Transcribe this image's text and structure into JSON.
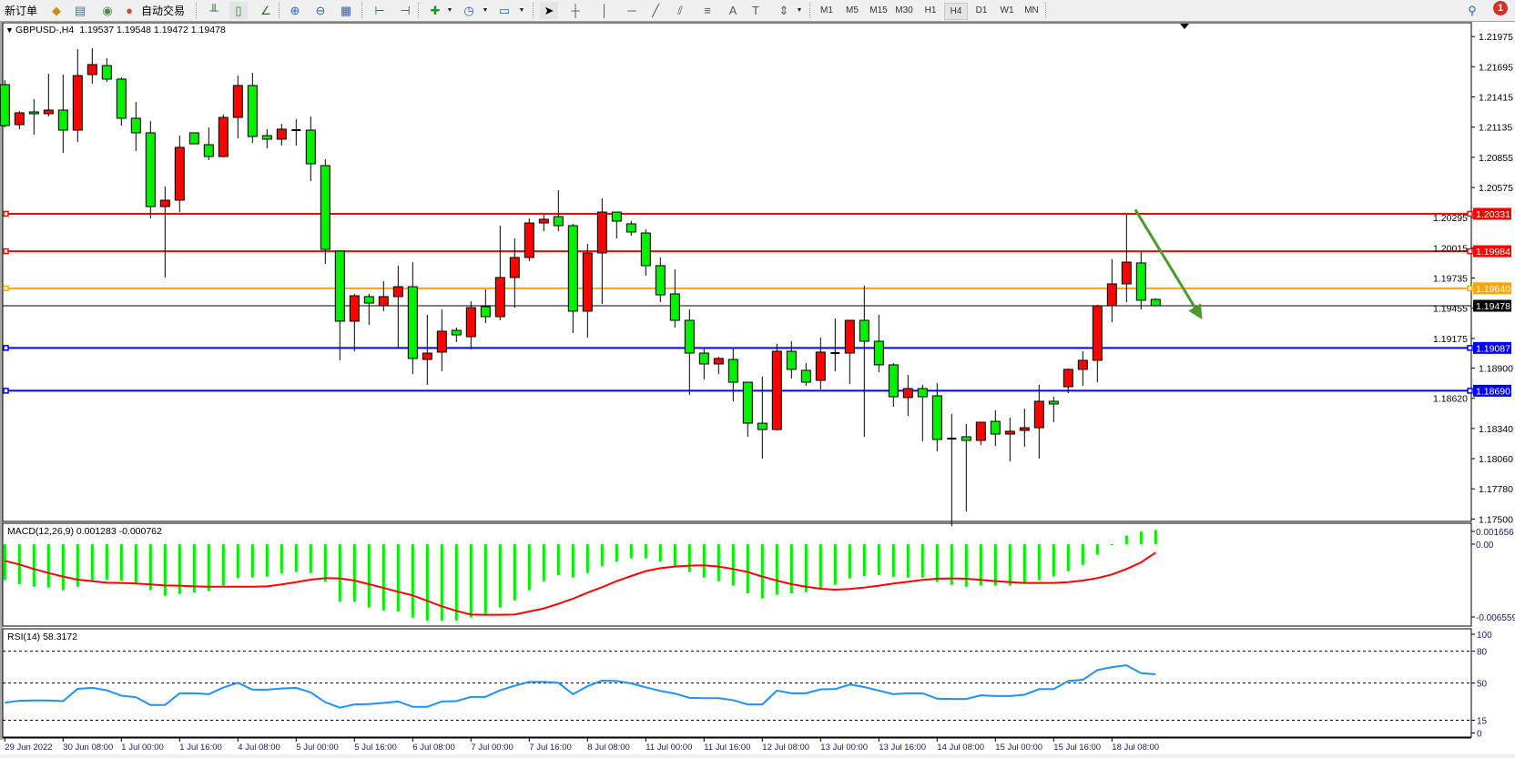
{
  "toolbar": {
    "new_order": "新订单",
    "auto_trading": "自动交易",
    "timeframes": [
      "M1",
      "M5",
      "M15",
      "M30",
      "H1",
      "H4",
      "D1",
      "W1",
      "MN"
    ],
    "active_timeframe": "H4",
    "notification_count": "1",
    "icons": [
      "orders-icon",
      "market-watch-icon",
      "signals-icon",
      "auto-trading-icon",
      "bar-chart-icon",
      "candlestick-icon",
      "line-chart-icon",
      "zoom-in-icon",
      "zoom-out-icon",
      "tile-windows-icon",
      "chart-shift-icon",
      "autoscroll-icon",
      "new-chart-icon",
      "periods-icon",
      "templates-icon",
      "cursor-icon",
      "crosshair-icon",
      "vertical-line-icon",
      "horizontal-line-icon",
      "trendline-icon",
      "equidistant-channel-icon",
      "fibonacci-icon",
      "text-icon",
      "text-label-icon",
      "arrows-icon",
      "search-icon",
      "notification-icon"
    ]
  },
  "colors": {
    "bull_candle": "#ff0000",
    "bear_candle": "#00ee00",
    "macd_histogram": "#00ee00",
    "macd_signal": "#ff0000",
    "rsi_line": "#1e90ff",
    "arrow": "#4c9a2a",
    "resistance": "#ff0000",
    "pivot": "#ffa500",
    "support": "#0000ff",
    "current_price": "#000000"
  },
  "chart_data": [
    {
      "type": "candlestick",
      "title": "GBPUSD-,H4",
      "header_values": "1.19537 1.19548 1.19472 1.19478",
      "ohlc_order": [
        "open",
        "high",
        "low",
        "close"
      ],
      "candles": [
        [
          1.21529,
          1.21571,
          1.21132,
          1.21149
        ],
        [
          1.21158,
          1.21284,
          1.21116,
          1.21268
        ],
        [
          1.21276,
          1.21394,
          1.21065,
          1.21259
        ],
        [
          1.21259,
          1.2163,
          1.21234,
          1.21293
        ],
        [
          1.21293,
          1.21622,
          1.20896,
          1.21107
        ],
        [
          1.21107,
          1.21858,
          1.20997,
          1.21613
        ],
        [
          1.21622,
          1.21867,
          1.21538,
          1.21715
        ],
        [
          1.21706,
          1.21774,
          1.21554,
          1.2158
        ],
        [
          1.2158,
          1.21597,
          1.21149,
          1.21217
        ],
        [
          1.21217,
          1.21369,
          1.20913,
          1.21082
        ],
        [
          1.21082,
          1.21191,
          1.20288,
          1.20398
        ],
        [
          1.20398,
          1.20584,
          1.1974,
          1.20457
        ],
        [
          1.20457,
          1.21056,
          1.20347,
          1.20947
        ],
        [
          1.21082,
          1.21082,
          1.2098,
          1.2098
        ],
        [
          1.20972,
          1.21132,
          1.20829,
          1.20862
        ],
        [
          1.20862,
          1.21251,
          1.20854,
          1.21225
        ],
        [
          1.21225,
          1.21613,
          1.21031,
          1.21521
        ],
        [
          1.21521,
          1.21639,
          1.20989,
          1.21048
        ],
        [
          1.21056,
          1.21116,
          1.20938,
          1.21023
        ],
        [
          1.21023,
          1.21166,
          1.20964,
          1.21116
        ],
        [
          1.21107,
          1.21208,
          1.20964,
          1.21107
        ],
        [
          1.21107,
          1.21234,
          1.20634,
          1.20795
        ],
        [
          1.20778,
          1.20837,
          1.19866,
          1.20001
        ],
        [
          1.19985,
          1.19985,
          1.18972,
          1.19335
        ],
        [
          1.19335,
          1.19588,
          1.19056,
          1.19571
        ],
        [
          1.19563,
          1.19588,
          1.19301,
          1.19503
        ],
        [
          1.19478,
          1.19706,
          1.19428,
          1.19563
        ],
        [
          1.19563,
          1.1985,
          1.1909,
          1.19655
        ],
        [
          1.19655,
          1.19883,
          1.18845,
          1.18989
        ],
        [
          1.1898,
          1.19394,
          1.18744,
          1.19039
        ],
        [
          1.19048,
          1.19444,
          1.18871,
          1.19242
        ],
        [
          1.1925,
          1.19276,
          1.19141,
          1.19208
        ],
        [
          1.19191,
          1.1952,
          1.19073,
          1.19461
        ],
        [
          1.1947,
          1.1963,
          1.19318,
          1.19377
        ],
        [
          1.19377,
          1.20221,
          1.19343,
          1.1974
        ],
        [
          1.1974,
          1.20103,
          1.19461,
          1.19926
        ],
        [
          1.19926,
          1.20288,
          1.19892,
          1.20246
        ],
        [
          1.20246,
          1.20322,
          1.2017,
          1.2028
        ],
        [
          1.20305,
          1.2055,
          1.2017,
          1.20221
        ],
        [
          1.20221,
          1.20238,
          1.19225,
          1.19428
        ],
        [
          1.19428,
          1.20052,
          1.19183,
          1.19968
        ],
        [
          1.19968,
          1.20474,
          1.19495,
          1.20347
        ],
        [
          1.20347,
          1.20347,
          1.20103,
          1.20263
        ],
        [
          1.20238,
          1.20263,
          1.20128,
          1.20162
        ],
        [
          1.20153,
          1.20187,
          1.19757,
          1.1985
        ],
        [
          1.1985,
          1.19926,
          1.19512,
          1.19579
        ],
        [
          1.19588,
          1.19816,
          1.19276,
          1.19343
        ],
        [
          1.19343,
          1.19444,
          1.18651,
          1.19039
        ],
        [
          1.19039,
          1.19082,
          1.18795,
          1.18938
        ],
        [
          1.18938,
          1.19006,
          1.18845,
          1.18989
        ],
        [
          1.1898,
          1.1909,
          1.18592,
          1.18769
        ],
        [
          1.18769,
          1.18769,
          1.18263,
          1.18389
        ],
        [
          1.18389,
          1.1882,
          1.1806,
          1.1833
        ],
        [
          1.1833,
          1.19124,
          1.18322,
          1.19056
        ],
        [
          1.19056,
          1.19149,
          1.18803,
          1.18888
        ],
        [
          1.18879,
          1.18946,
          1.18736,
          1.18769
        ],
        [
          1.18786,
          1.19183,
          1.18702,
          1.19048
        ],
        [
          1.19039,
          1.1936,
          1.18871,
          1.19039
        ],
        [
          1.19039,
          1.19343,
          1.18753,
          1.19343
        ],
        [
          1.19343,
          1.19664,
          1.18263,
          1.19149
        ],
        [
          1.19149,
          1.19394,
          1.18862,
          1.1893
        ],
        [
          1.1893,
          1.18946,
          1.18541,
          1.18634
        ],
        [
          1.18626,
          1.18837,
          1.18457,
          1.1871
        ],
        [
          1.1871,
          1.18744,
          1.18221,
          1.18634
        ],
        [
          1.18643,
          1.18761,
          1.18128,
          1.18238
        ],
        [
          1.18246,
          1.18474,
          1.17434,
          1.18246
        ],
        [
          1.18263,
          1.18381,
          1.17569,
          1.18229
        ],
        [
          1.18229,
          1.18398,
          1.18187,
          1.18398
        ],
        [
          1.18406,
          1.18508,
          1.18178,
          1.18288
        ],
        [
          1.18288,
          1.1844,
          1.18035,
          1.18314
        ],
        [
          1.18322,
          1.18524,
          1.1817,
          1.18347
        ],
        [
          1.18347,
          1.18744,
          1.1806,
          1.18592
        ],
        [
          1.18592,
          1.18634,
          1.18398,
          1.18567
        ],
        [
          1.18727,
          1.18896,
          1.18668,
          1.18888
        ],
        [
          1.18888,
          1.19056,
          1.18736,
          1.18972
        ],
        [
          1.18972,
          1.19487,
          1.18769,
          1.19478
        ],
        [
          1.19478,
          1.19909,
          1.19326,
          1.19681
        ],
        [
          1.19681,
          1.20322,
          1.19512,
          1.19883
        ],
        [
          1.19875,
          1.19976,
          1.19444,
          1.19529
        ],
        [
          1.19537,
          1.19548,
          1.19472,
          1.19478
        ]
      ],
      "price_ticks": [
        "1.21975",
        "1.21695",
        "1.21415",
        "1.21135",
        "1.20855",
        "1.20575",
        "1.20295",
        "1.20015",
        "1.19735",
        "1.19455",
        "1.19175",
        "1.18900",
        "1.18620",
        "1.18340",
        "1.18060",
        "1.17780",
        "1.17500"
      ],
      "horizontal_lines": [
        {
          "price": 1.20331,
          "label": "1.20331",
          "color": "#ff0000"
        },
        {
          "price": 1.19984,
          "label": "1.19984",
          "color": "#ff0000"
        },
        {
          "price": 1.1964,
          "label": "1.19640",
          "color": "#ffa500"
        },
        {
          "price": 1.19087,
          "label": "1.19087",
          "color": "#0000ff"
        },
        {
          "price": 1.1869,
          "label": "1.18690",
          "color": "#0000ff"
        }
      ],
      "current_price": {
        "price": 1.19478,
        "label": "1.19478"
      },
      "arrow": {
        "from_bar": 77.6,
        "from_price": 1.2037,
        "to_bar": 82.2,
        "to_price": 1.1935
      },
      "x_ticks": [
        {
          "bar": 0,
          "label": "29 Jun 2022"
        },
        {
          "bar": 4,
          "label": "30 Jun 08:00"
        },
        {
          "bar": 8,
          "label": "1 Jul 00:00"
        },
        {
          "bar": 12,
          "label": "1 Jul 16:00"
        },
        {
          "bar": 16,
          "label": "4 Jul 08:00"
        },
        {
          "bar": 20,
          "label": "5 Jul 00:00"
        },
        {
          "bar": 24,
          "label": "5 Jul 16:00"
        },
        {
          "bar": 28,
          "label": "6 Jul 08:00"
        },
        {
          "bar": 32,
          "label": "7 Jul 00:00"
        },
        {
          "bar": 36,
          "label": "7 Jul 16:00"
        },
        {
          "bar": 40,
          "label": "8 Jul 08:00"
        },
        {
          "bar": 44,
          "label": "11 Jul 00:00"
        },
        {
          "bar": 48,
          "label": "11 Jul 16:00"
        },
        {
          "bar": 52,
          "label": "12 Jul 08:00"
        },
        {
          "bar": 56,
          "label": "13 Jul 00:00"
        },
        {
          "bar": 60,
          "label": "13 Jul 16:00"
        },
        {
          "bar": 64,
          "label": "14 Jul 08:00"
        },
        {
          "bar": 68,
          "label": "15 Jul 00:00"
        },
        {
          "bar": 72,
          "label": "15 Jul 16:00"
        },
        {
          "bar": 76,
          "label": "18 Jul 08:00"
        }
      ]
    },
    {
      "type": "bar+line",
      "title": "MACD(12,26,9) 0.001283 -0.000762",
      "y_ticks": [
        "0.001656",
        "0.00",
        "-0.006559"
      ],
      "ylim": [
        -0.006559,
        0.001656
      ],
      "histogram": [
        -0.00323,
        -0.00361,
        -0.00383,
        -0.00391,
        -0.00415,
        -0.00383,
        -0.00333,
        -0.0032,
        -0.00328,
        -0.00347,
        -0.00415,
        -0.00465,
        -0.00448,
        -0.00435,
        -0.00424,
        -0.00374,
        -0.00306,
        -0.00301,
        -0.00292,
        -0.00265,
        -0.00251,
        -0.0026,
        -0.00339,
        -0.00519,
        -0.00519,
        -0.00571,
        -0.00596,
        -0.00607,
        -0.00661,
        -0.00691,
        -0.00691,
        -0.00691,
        -0.00661,
        -0.00629,
        -0.00571,
        -0.00506,
        -0.00415,
        -0.00333,
        -0.00279,
        -0.00301,
        -0.0026,
        -0.00197,
        -0.00156,
        -0.00128,
        -0.00128,
        -0.00156,
        -0.00197,
        -0.00251,
        -0.00301,
        -0.00333,
        -0.00374,
        -0.00443,
        -0.00489,
        -0.00456,
        -0.00443,
        -0.00432,
        -0.00394,
        -0.00366,
        -0.00309,
        -0.00287,
        -0.00279,
        -0.00295,
        -0.00301,
        -0.00301,
        -0.00342,
        -0.00366,
        -0.00383,
        -0.00374,
        -0.00374,
        -0.00374,
        -0.00347,
        -0.00325,
        -0.00292,
        -0.00243,
        -0.00186,
        -0.00096,
        -5e-05,
        0.00076,
        0.00113,
        0.001283
      ],
      "signal": [
        -0.0015,
        -0.00183,
        -0.00224,
        -0.0026,
        -0.00292,
        -0.0032,
        -0.00333,
        -0.00347,
        -0.0035,
        -0.00355,
        -0.00363,
        -0.00372,
        -0.00374,
        -0.0038,
        -0.00383,
        -0.00383,
        -0.00383,
        -0.00383,
        -0.0038,
        -0.00363,
        -0.00342,
        -0.0032,
        -0.00306,
        -0.00309,
        -0.00328,
        -0.00361,
        -0.00394,
        -0.00429,
        -0.00462,
        -0.00511,
        -0.0056,
        -0.00601,
        -0.00634,
        -0.00637,
        -0.00637,
        -0.00634,
        -0.00607,
        -0.00579,
        -0.00538,
        -0.00492,
        -0.00437,
        -0.00388,
        -0.00333,
        -0.00287,
        -0.00243,
        -0.00216,
        -0.00202,
        -0.00194,
        -0.00191,
        -0.00202,
        -0.00224,
        -0.00251,
        -0.00292,
        -0.00328,
        -0.00361,
        -0.00383,
        -0.00402,
        -0.0041,
        -0.00404,
        -0.00391,
        -0.00374,
        -0.00355,
        -0.00339,
        -0.00322,
        -0.00312,
        -0.00309,
        -0.00312,
        -0.00322,
        -0.00333,
        -0.00342,
        -0.0035,
        -0.0035,
        -0.0035,
        -0.00342,
        -0.00328,
        -0.00306,
        -0.00273,
        -0.00224,
        -0.00164,
        -0.000762
      ]
    },
    {
      "type": "line",
      "title": "RSI(14) 58.3172",
      "y_ticks": [
        "100",
        "80",
        "50",
        "15",
        "0"
      ],
      "levels": [
        80,
        50,
        15
      ],
      "ylim": [
        0,
        100
      ],
      "values": [
        31.6,
        33.3,
        33.6,
        33.6,
        33.0,
        44.6,
        45.5,
        43.2,
        38.1,
        36.7,
        29.3,
        29.3,
        40.4,
        40.4,
        39.5,
        45.8,
        50.3,
        43.8,
        43.8,
        44.9,
        45.5,
        41.2,
        31.9,
        26.8,
        29.9,
        30.2,
        31.3,
        32.7,
        27.6,
        27.6,
        32.7,
        33.0,
        37.0,
        37.0,
        43.2,
        47.5,
        51.1,
        51.1,
        50.3,
        39.5,
        47.0,
        52.3,
        52.0,
        49.7,
        46.0,
        42.6,
        40.1,
        36.1,
        35.8,
        35.8,
        33.9,
        29.9,
        29.9,
        42.9,
        40.4,
        40.4,
        44.1,
        44.3,
        48.6,
        46.3,
        42.9,
        39.5,
        40.4,
        40.4,
        35.3,
        35.0,
        35.0,
        38.4,
        37.8,
        37.8,
        39.0,
        44.3,
        44.3,
        52.0,
        53.1,
        62.2,
        65.0,
        66.7,
        59.3,
        58.3172
      ]
    }
  ]
}
